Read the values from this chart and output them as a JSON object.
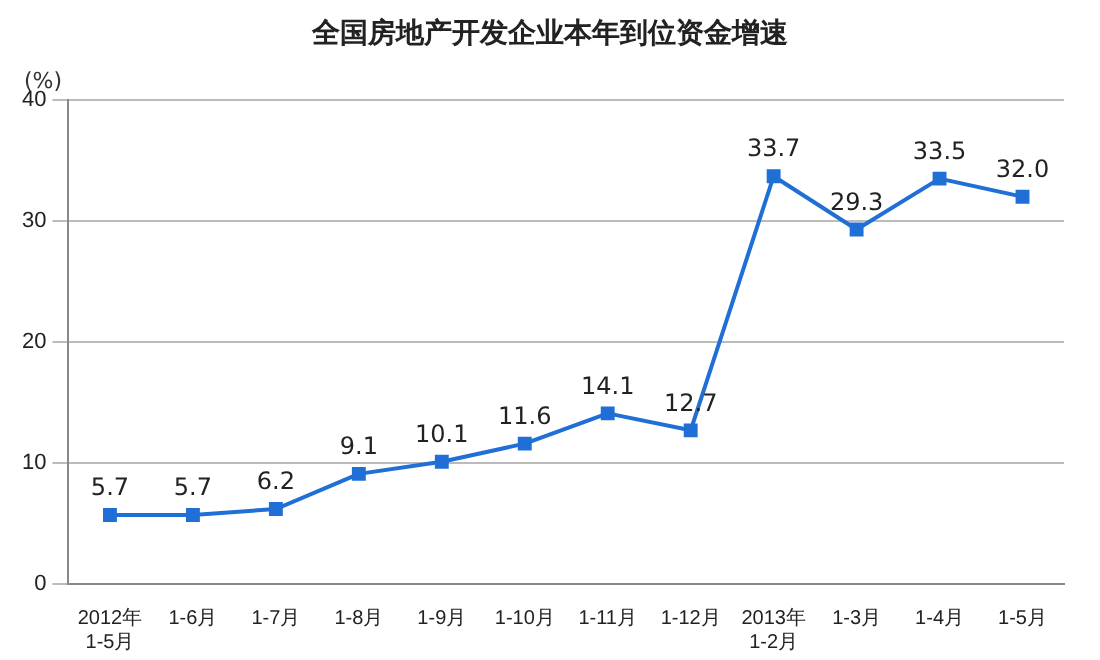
{
  "chart_data": {
    "type": "line",
    "title": "全国房地产开发企业本年到位资金增速",
    "ylabel": "(%)",
    "categories": [
      "2012年\n1-5月",
      "1-6月",
      "1-7月",
      "1-8月",
      "1-9月",
      "1-10月",
      "1-11月",
      "1-12月",
      "2013年\n1-2月",
      "1-3月",
      "1-4月",
      "1-5月"
    ],
    "series": [
      {
        "color": "#1f6fd6",
        "values": [
          5.7,
          5.7,
          6.2,
          9.1,
          10.1,
          11.6,
          14.1,
          12.7,
          33.7,
          29.3,
          33.5,
          32.0
        ],
        "value_labels": [
          "5.7",
          "5.7",
          "6.2",
          "9.1",
          "10.1",
          "11.6",
          "14.1",
          "12.7",
          "33.7",
          "29.3",
          "33.5",
          "32.0"
        ]
      }
    ],
    "ylim": [
      0,
      40
    ],
    "yticks": [
      0,
      10,
      20,
      30,
      40
    ],
    "grid": "y",
    "marker": "square",
    "line_style": "solid",
    "legend": false
  }
}
